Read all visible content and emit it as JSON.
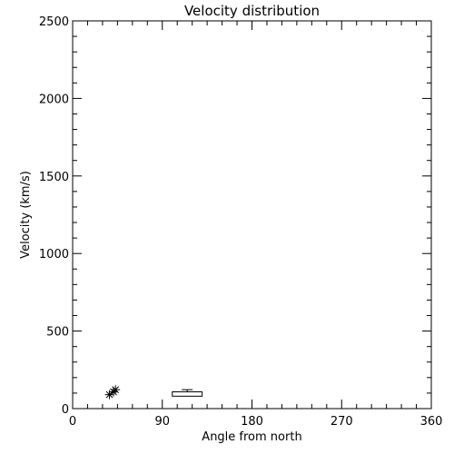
{
  "chart_data": {
    "type": "scatter",
    "title": "Velocity distribution",
    "xlabel": "Angle from north",
    "ylabel": "Velocity (km/s)",
    "xlim": [
      0,
      360
    ],
    "ylim": [
      0,
      2500
    ],
    "xticks": [
      0,
      90,
      180,
      270,
      360
    ],
    "yticks": [
      0,
      500,
      1000,
      1500,
      2000,
      2500
    ],
    "grid": false,
    "series": [
      {
        "marker": "asterisk",
        "points": [
          {
            "x": 37,
            "y": 90
          },
          {
            "x": 41,
            "y": 108
          },
          {
            "x": 43,
            "y": 122
          }
        ]
      }
    ],
    "boxplots": [
      {
        "x_min": 100,
        "x_max": 130,
        "q1": 80,
        "median": 100,
        "q3": 108,
        "max": 122,
        "min": 80
      }
    ]
  }
}
